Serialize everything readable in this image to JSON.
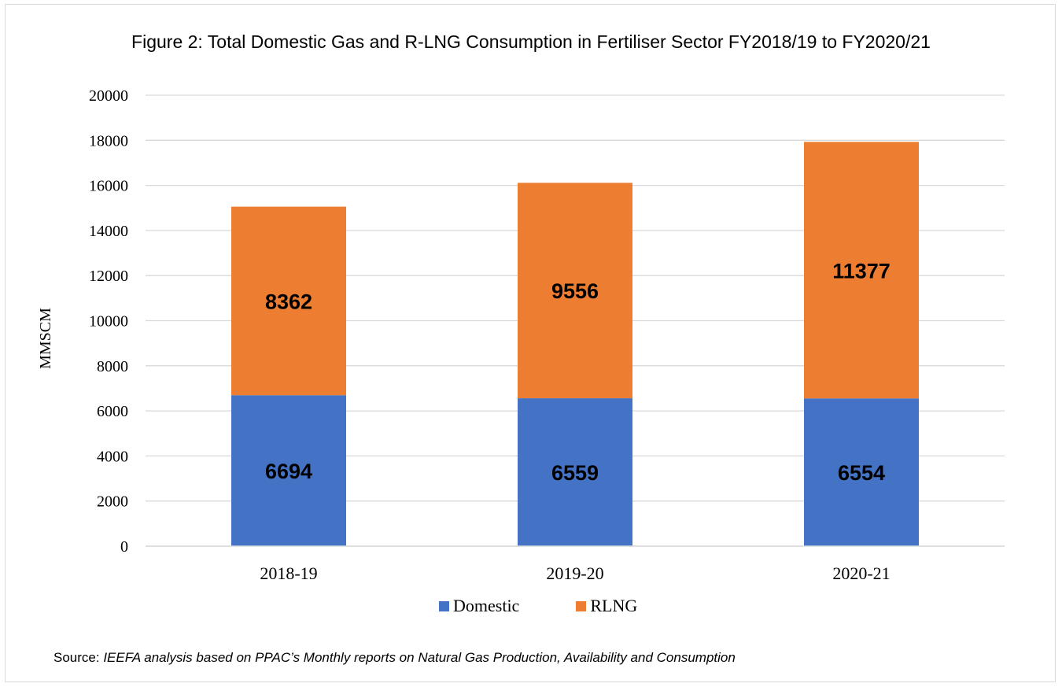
{
  "chart_data": {
    "type": "bar",
    "stacked": true,
    "title": "Figure 2: Total Domestic Gas and R-LNG Consumption in Fertiliser Sector FY2018/19 to FY2020/21",
    "xlabel": "",
    "ylabel": "MMSCM",
    "ylim": [
      0,
      20000
    ],
    "yticks": [
      0,
      2000,
      4000,
      6000,
      8000,
      10000,
      12000,
      14000,
      16000,
      18000,
      20000
    ],
    "categories": [
      "2018-19",
      "2019-20",
      "2020-21"
    ],
    "series": [
      {
        "name": "Domestic",
        "color": "#4472c4",
        "values": [
          6694,
          6559,
          6554
        ]
      },
      {
        "name": "RLNG",
        "color": "#ed7d31",
        "values": [
          8362,
          9556,
          11377
        ]
      }
    ],
    "grid": true,
    "legend_position": "bottom"
  },
  "source": {
    "prefix": "Source: ",
    "text": "IEEFA analysis based on PPAC’s Monthly reports on Natural Gas Production, Availability and Consumption"
  }
}
